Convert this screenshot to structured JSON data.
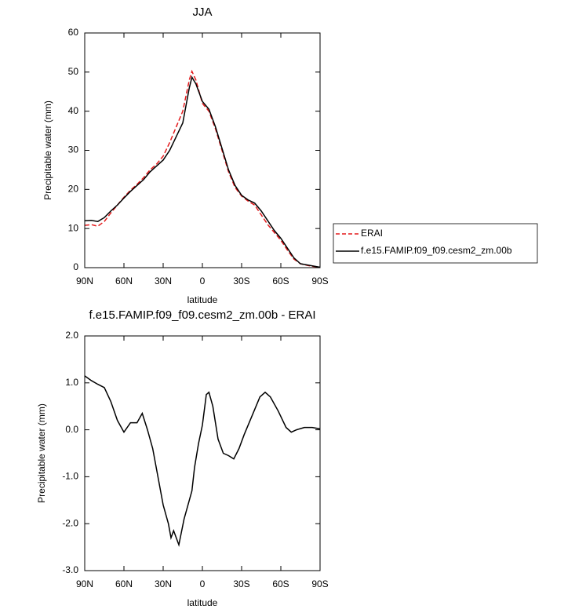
{
  "chart_data": [
    {
      "type": "line",
      "title": "JJA",
      "xlabel": "latitude",
      "ylabel": "Precipitable water (mm)",
      "x": [
        90,
        85,
        80,
        75,
        70,
        65,
        60,
        55,
        50,
        45,
        40,
        35,
        30,
        25,
        20,
        15,
        10,
        8,
        5,
        0,
        -5,
        -10,
        -15,
        -20,
        -25,
        -30,
        -35,
        -40,
        -45,
        -50,
        -55,
        -60,
        -65,
        -70,
        -75,
        -80,
        -85,
        -90
      ],
      "series": [
        {
          "name": "ERAI",
          "color": "#e41a1c",
          "dashed": true,
          "values": [
            10.8,
            11,
            10.6,
            11.8,
            14,
            16,
            18,
            19.8,
            21.3,
            23,
            25,
            26.5,
            28.5,
            32,
            36,
            40,
            48,
            50.2,
            48,
            42,
            40,
            35.5,
            30,
            24.5,
            20.5,
            18.3,
            17,
            16,
            13.5,
            11,
            9,
            7,
            4.5,
            2.2,
            1,
            0.6,
            0.3,
            0.1
          ]
        },
        {
          "name": "f.e15.FAMIP.f09_f09.cesm2_zm.00b",
          "color": "#000000",
          "dashed": false,
          "values": [
            12,
            12.1,
            11.8,
            12.8,
            14.5,
            16,
            17.8,
            19.5,
            21,
            22.5,
            24.5,
            26,
            27.5,
            30,
            33.5,
            37,
            46,
            48.7,
            47,
            42.5,
            40.5,
            36,
            30.5,
            25,
            21,
            18.5,
            17.3,
            16.5,
            14.5,
            12,
            9.5,
            7.5,
            5,
            2.5,
            1,
            0.7,
            0.4,
            0.1
          ]
        }
      ],
      "xlim": [
        90,
        -90
      ],
      "xticks": [
        {
          "value": 90,
          "label": "90N"
        },
        {
          "value": 60,
          "label": "60N"
        },
        {
          "value": 30,
          "label": "30N"
        },
        0,
        {
          "value": -30,
          "label": "30S"
        },
        {
          "value": -60,
          "label": "60S"
        },
        {
          "value": -90,
          "label": "90S"
        }
      ],
      "ylim": [
        0,
        60
      ],
      "yticks": [
        0,
        10,
        20,
        30,
        40,
        50,
        60
      ],
      "legend": "right"
    },
    {
      "type": "line",
      "title": "f.e15.FAMIP.f09_f09.cesm2_zm.00b - ERAI",
      "xlabel": "latitude",
      "ylabel": "Precipitable water (mm)",
      "x": [
        90,
        85,
        80,
        75,
        70,
        65,
        60,
        55,
        50,
        46,
        42,
        38,
        34,
        30,
        26,
        24,
        22,
        18,
        14,
        11,
        8,
        6,
        3,
        0,
        -3,
        -5,
        -8,
        -12,
        -16,
        -20,
        -24,
        -28,
        -32,
        -38,
        -44,
        -48,
        -52,
        -58,
        -64,
        -68,
        -72,
        -78,
        -84,
        -90
      ],
      "values": [
        1.15,
        1.05,
        0.97,
        0.9,
        0.6,
        0.2,
        -0.05,
        0.15,
        0.15,
        0.35,
        0.0,
        -0.4,
        -1.0,
        -1.6,
        -2.0,
        -2.3,
        -2.15,
        -2.45,
        -1.9,
        -1.6,
        -1.3,
        -0.8,
        -0.3,
        0.1,
        0.75,
        0.8,
        0.5,
        -0.2,
        -0.5,
        -0.55,
        -0.62,
        -0.4,
        -0.1,
        0.3,
        0.7,
        0.8,
        0.7,
        0.4,
        0.05,
        -0.05,
        0.0,
        0.05,
        0.05,
        0.02
      ],
      "color": "#000000",
      "xlim": [
        90,
        -90
      ],
      "xticks": [
        {
          "value": 90,
          "label": "90N"
        },
        {
          "value": 60,
          "label": "60N"
        },
        {
          "value": 30,
          "label": "30N"
        },
        0,
        {
          "value": -30,
          "label": "30S"
        },
        {
          "value": -60,
          "label": "60S"
        },
        {
          "value": -90,
          "label": "90S"
        }
      ],
      "ylim": [
        -3,
        2
      ],
      "yticks": [
        {
          "value": -3,
          "label": "-3.0"
        },
        {
          "value": -2,
          "label": "-2.0"
        },
        {
          "value": -1,
          "label": "-1.0"
        },
        {
          "value": 0,
          "label": "0.0"
        },
        {
          "value": 1,
          "label": "1.0"
        },
        {
          "value": 2,
          "label": "2.0"
        }
      ]
    }
  ]
}
